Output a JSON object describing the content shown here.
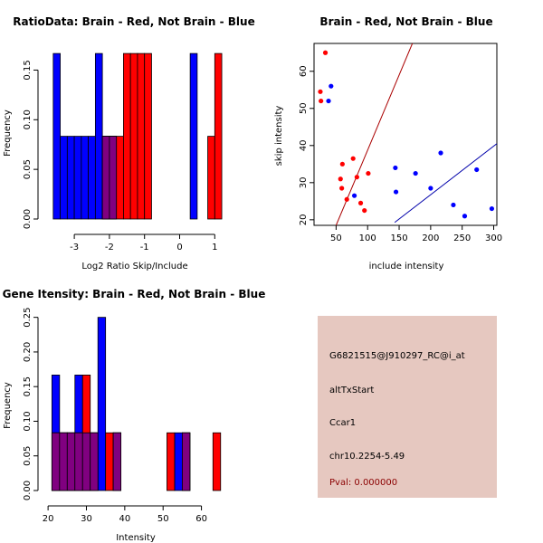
{
  "colors": {
    "red": "#FF0000",
    "blue": "#0000FF",
    "purple": "#800080",
    "panel_bg": "#E6C8C0",
    "pval": "#8B0000",
    "redline": "#AA0000",
    "blueline": "#0000AA"
  },
  "chart_data": [
    {
      "type": "bar",
      "title": "RatioData: Brain - Red, Not Brain - Blue",
      "xlabel": "Log2 Ratio Skip/Include",
      "ylabel": "Frequency",
      "xlim": [
        -3.75,
        1.25
      ],
      "ylim": [
        0,
        0.175
      ],
      "xticks": [
        -3,
        -2,
        -1,
        0,
        1
      ],
      "yticks": [
        0.0,
        0.05,
        0.1,
        0.15
      ],
      "ytick_labels": [
        "0.00",
        "0.05",
        "0.10",
        "0.15"
      ],
      "bin_width": 0.2,
      "series": [
        {
          "name": "Not Brain",
          "color": "blue",
          "bins": [
            [
              -3.6,
              0.1667
            ],
            [
              -3.4,
              0.0833
            ],
            [
              -3.2,
              0.0833
            ],
            [
              -3.0,
              0.0833
            ],
            [
              -2.8,
              0.0833
            ],
            [
              -2.6,
              0.0833
            ],
            [
              -2.4,
              0.1667
            ],
            [
              -2.2,
              0.0833
            ],
            [
              -2.0,
              0.0833
            ],
            [
              0.3,
              0.1667
            ]
          ]
        },
        {
          "name": "Brain",
          "color": "red",
          "bins": [
            [
              -2.2,
              0.0833
            ],
            [
              -2.0,
              0.0833
            ],
            [
              -1.8,
              0.0833
            ],
            [
              -1.6,
              0.1667
            ],
            [
              -1.4,
              0.1667
            ],
            [
              -1.2,
              0.1667
            ],
            [
              -1.0,
              0.1667
            ],
            [
              0.8,
              0.0833
            ],
            [
              1.0,
              0.1667
            ]
          ]
        }
      ]
    },
    {
      "type": "scatter",
      "title": "Brain - Red, Not Brain - Blue",
      "xlabel": "include intensity",
      "ylabel": "skip intensity",
      "xlim": [
        15,
        305
      ],
      "ylim": [
        18.5,
        67.5
      ],
      "xticks": [
        50,
        100,
        150,
        200,
        250,
        300
      ],
      "yticks": [
        20,
        30,
        40,
        50,
        60
      ],
      "series": [
        {
          "name": "Brain",
          "color": "red",
          "points": [
            [
              25,
              54.5
            ],
            [
              26,
              52
            ],
            [
              33,
              65
            ],
            [
              57,
              31
            ],
            [
              59,
              28.5
            ],
            [
              60,
              35
            ],
            [
              67,
              25.5
            ],
            [
              77,
              36.5
            ],
            [
              83,
              31.5
            ],
            [
              89,
              24.5
            ],
            [
              95,
              22.5
            ],
            [
              101,
              32.5
            ]
          ]
        },
        {
          "name": "Not Brain",
          "color": "blue",
          "points": [
            [
              38,
              52
            ],
            [
              42,
              56
            ],
            [
              79,
              26.5
            ],
            [
              144,
              34
            ],
            [
              145,
              27.5
            ],
            [
              176,
              32.5
            ],
            [
              200,
              28.5
            ],
            [
              216,
              38
            ],
            [
              236,
              24
            ],
            [
              254,
              21
            ],
            [
              273,
              33.5
            ],
            [
              297,
              23
            ]
          ]
        }
      ],
      "fit_lines": [
        {
          "name": "Brain fit",
          "color": "redline",
          "from": [
            50,
            18.5
          ],
          "to": [
            171,
            67.5
          ]
        },
        {
          "name": "Not Brain fit",
          "color": "blueline",
          "from": [
            143,
            19.3
          ],
          "to": [
            305,
            40.5
          ]
        }
      ]
    },
    {
      "type": "bar",
      "title": "Gene Itensity: Brain - Red, Not Brain - Blue",
      "xlabel": "Intensity",
      "ylabel": "Frequency",
      "xlim": [
        19.5,
        66
      ],
      "ylim": [
        0,
        0.26
      ],
      "xticks": [
        20,
        30,
        40,
        50,
        60
      ],
      "yticks": [
        0.0,
        0.05,
        0.1,
        0.15,
        0.2,
        0.25
      ],
      "ytick_labels": [
        "0.00",
        "0.05",
        "0.10",
        "0.15",
        "0.20",
        "0.25"
      ],
      "bin_width": 2,
      "series": [
        {
          "name": "Not Brain",
          "color": "blue",
          "bins": [
            [
              21,
              0.1667
            ],
            [
              23,
              0.0833
            ],
            [
              25,
              0.0833
            ],
            [
              27,
              0.1667
            ],
            [
              29,
              0.0833
            ],
            [
              31,
              0.0833
            ],
            [
              33,
              0.25
            ],
            [
              37,
              0.0833
            ],
            [
              53,
              0.0833
            ],
            [
              55,
              0.0833
            ]
          ]
        },
        {
          "name": "Brain",
          "color": "red",
          "bins": [
            [
              21,
              0.0833
            ],
            [
              23,
              0.0833
            ],
            [
              25,
              0.0833
            ],
            [
              27,
              0.0833
            ],
            [
              29,
              0.1667
            ],
            [
              31,
              0.0833
            ],
            [
              35,
              0.0833
            ],
            [
              37,
              0.0833
            ],
            [
              51,
              0.0833
            ],
            [
              55,
              0.0833
            ],
            [
              63,
              0.0833
            ]
          ]
        }
      ]
    }
  ],
  "info": {
    "probe": "G6821515@J910297_RC@i_at",
    "event": "altTxStart",
    "gene": "Ccar1",
    "location": "chr10.2254-5.49",
    "pval": "Pval: 0.000000"
  }
}
